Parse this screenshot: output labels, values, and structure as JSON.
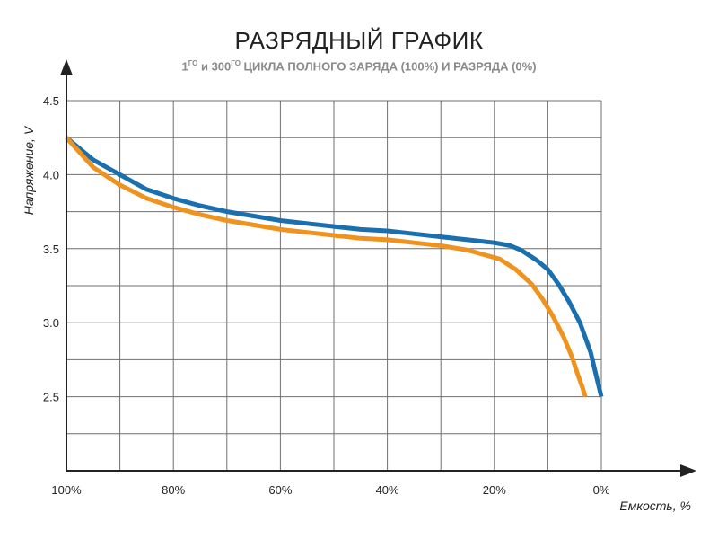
{
  "chart_data": {
    "type": "line",
    "title": "РАЗРЯДНЫЙ ГРАФИК",
    "subtitle": {
      "n1": "1",
      "sup1": "ГО",
      "mid": " и 300",
      "sup2": "ГО",
      "rest": " ЦИКЛА ПОЛНОГО ЗАРЯДА (100%) И РАЗРЯДА (0%)"
    },
    "xlabel": "Емкость, %",
    "ylabel": "Напряжение, V",
    "x_reversed": true,
    "xlim": [
      100,
      0
    ],
    "ylim": [
      2.0,
      4.5
    ],
    "x_ticks": [
      100,
      80,
      60,
      40,
      20,
      0
    ],
    "x_tick_labels": [
      "100%",
      "80%",
      "60%",
      "40%",
      "20%",
      "0%"
    ],
    "y_ticks": [
      2.5,
      3.0,
      3.5,
      4.0,
      4.5
    ],
    "y_tick_labels": [
      "2.5",
      "3.0",
      "3.5",
      "4.0",
      "4.5"
    ],
    "grid": true,
    "series": [
      {
        "color": "#1a6fae",
        "x": [
          100,
          95,
          90,
          85,
          80,
          75,
          70,
          65,
          60,
          55,
          50,
          45,
          40,
          35,
          30,
          25,
          20,
          17,
          15,
          12,
          10,
          8,
          6,
          4,
          2,
          1,
          0
        ],
        "y": [
          4.25,
          4.1,
          4.0,
          3.9,
          3.84,
          3.79,
          3.75,
          3.72,
          3.69,
          3.67,
          3.65,
          3.63,
          3.62,
          3.6,
          3.58,
          3.56,
          3.54,
          3.52,
          3.49,
          3.42,
          3.36,
          3.26,
          3.14,
          3.0,
          2.8,
          2.65,
          2.5
        ]
      },
      {
        "color": "#f0921e",
        "x": [
          100,
          95,
          90,
          85,
          80,
          75,
          70,
          65,
          60,
          55,
          50,
          45,
          40,
          35,
          30,
          25,
          22,
          19,
          16,
          13,
          11,
          9,
          7,
          5.5,
          4.5,
          3.5,
          3
        ],
        "y": [
          4.25,
          4.05,
          3.93,
          3.84,
          3.78,
          3.73,
          3.69,
          3.66,
          3.63,
          3.61,
          3.59,
          3.57,
          3.56,
          3.54,
          3.52,
          3.49,
          3.46,
          3.43,
          3.36,
          3.26,
          3.16,
          3.04,
          2.9,
          2.77,
          2.66,
          2.56,
          2.5
        ]
      }
    ]
  }
}
